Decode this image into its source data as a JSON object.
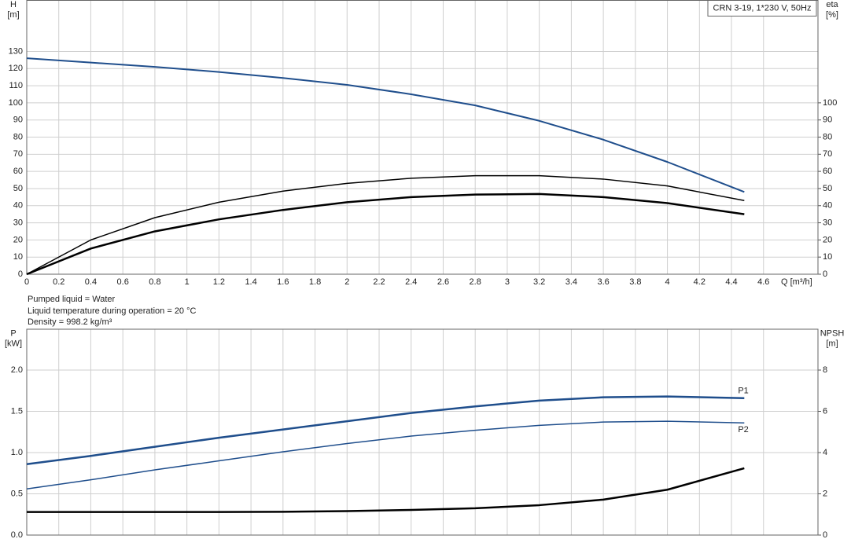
{
  "chart_data": [
    {
      "type": "line",
      "title": "CRN 3-19, 1*230 V, 50Hz",
      "ylabel": [
        "H",
        "[m]"
      ],
      "y2label": [
        "eta",
        "[%]"
      ],
      "xlabel": "Q [m³/h]",
      "xlim": [
        0,
        4.94
      ],
      "xticks": [
        0,
        0.2,
        0.4,
        0.6,
        0.8,
        1.0,
        1.2,
        1.4,
        1.6,
        1.8,
        2.0,
        2.2,
        2.4,
        2.6,
        2.8,
        3.0,
        3.2,
        3.4,
        3.6,
        3.8,
        4.0,
        4.2,
        4.4,
        4.6
      ],
      "ylim": [
        0,
        160
      ],
      "yticks": [
        0,
        10,
        20,
        30,
        40,
        50,
        60,
        70,
        80,
        90,
        100,
        110,
        120,
        130
      ],
      "y2lim": [
        0,
        160
      ],
      "y2ticks": [
        0,
        10,
        20,
        30,
        40,
        50,
        60,
        70,
        80,
        90,
        100
      ],
      "grid": true,
      "xtick_labels": true,
      "x": [
        0,
        0.4,
        0.8,
        1.2,
        1.6,
        2.0,
        2.4,
        2.8,
        3.2,
        3.6,
        4.0,
        4.48
      ],
      "series": [
        {
          "color": "#1f4e8c",
          "width": 2,
          "values": [
            126,
            123.5,
            121,
            118,
            114.5,
            110.5,
            105,
            98.5,
            89.5,
            78.5,
            65.5,
            48
          ]
        },
        {
          "color": "#000000",
          "width": 1.5,
          "axis": "y2",
          "values": [
            0,
            20,
            33,
            42,
            48.5,
            53,
            56,
            57.5,
            57.5,
            55.5,
            51.5,
            43
          ]
        },
        {
          "color": "#000000",
          "width": 2.5,
          "axis": "y2",
          "values": [
            0,
            15,
            25,
            32,
            37.5,
            42,
            45,
            46.5,
            46.8,
            45,
            41.5,
            35
          ]
        }
      ]
    },
    {
      "type": "line",
      "ylabel": [
        "P",
        "[kW]"
      ],
      "y2label": [
        "NPSH",
        "[m]"
      ],
      "xlim": [
        0,
        4.94
      ],
      "xticks": [
        0,
        0.2,
        0.4,
        0.6,
        0.8,
        1.0,
        1.2,
        1.4,
        1.6,
        1.8,
        2.0,
        2.2,
        2.4,
        2.6,
        2.8,
        3.0,
        3.2,
        3.4,
        3.6,
        3.8,
        4.0,
        4.2,
        4.4,
        4.6
      ],
      "ylim": [
        0,
        2.5
      ],
      "yticks": [
        {
          "value": 0,
          "label": "0.0"
        },
        0.5,
        {
          "value": 1,
          "label": "1.0"
        },
        1.5,
        {
          "value": 2,
          "label": "2.0"
        }
      ],
      "y2lim": [
        0,
        10
      ],
      "y2ticks": [
        0,
        2,
        4,
        6,
        8
      ],
      "grid": true,
      "xtick_labels": false,
      "x": [
        0,
        0.4,
        0.8,
        1.2,
        1.6,
        2.0,
        2.4,
        2.8,
        3.2,
        3.6,
        4.0,
        4.48
      ],
      "series": [
        {
          "name": "P1",
          "color": "#1f4e8c",
          "width": 2.5,
          "values": [
            0.86,
            0.96,
            1.07,
            1.18,
            1.28,
            1.38,
            1.48,
            1.56,
            1.63,
            1.67,
            1.68,
            1.66
          ]
        },
        {
          "name": "P2",
          "color": "#1f4e8c",
          "width": 1.5,
          "values": [
            0.56,
            0.67,
            0.79,
            0.9,
            1.01,
            1.11,
            1.2,
            1.27,
            1.33,
            1.37,
            1.38,
            1.36
          ]
        },
        {
          "color": "#000000",
          "width": 2.5,
          "axis": "y2",
          "values": [
            1.12,
            1.12,
            1.12,
            1.12,
            1.13,
            1.16,
            1.22,
            1.3,
            1.45,
            1.72,
            2.2,
            3.24
          ]
        }
      ]
    }
  ],
  "notes": [
    "Pumped liquid = Water",
    "Liquid temperature during operation = 20 °C",
    "Density = 998.2 kg/m³"
  ]
}
